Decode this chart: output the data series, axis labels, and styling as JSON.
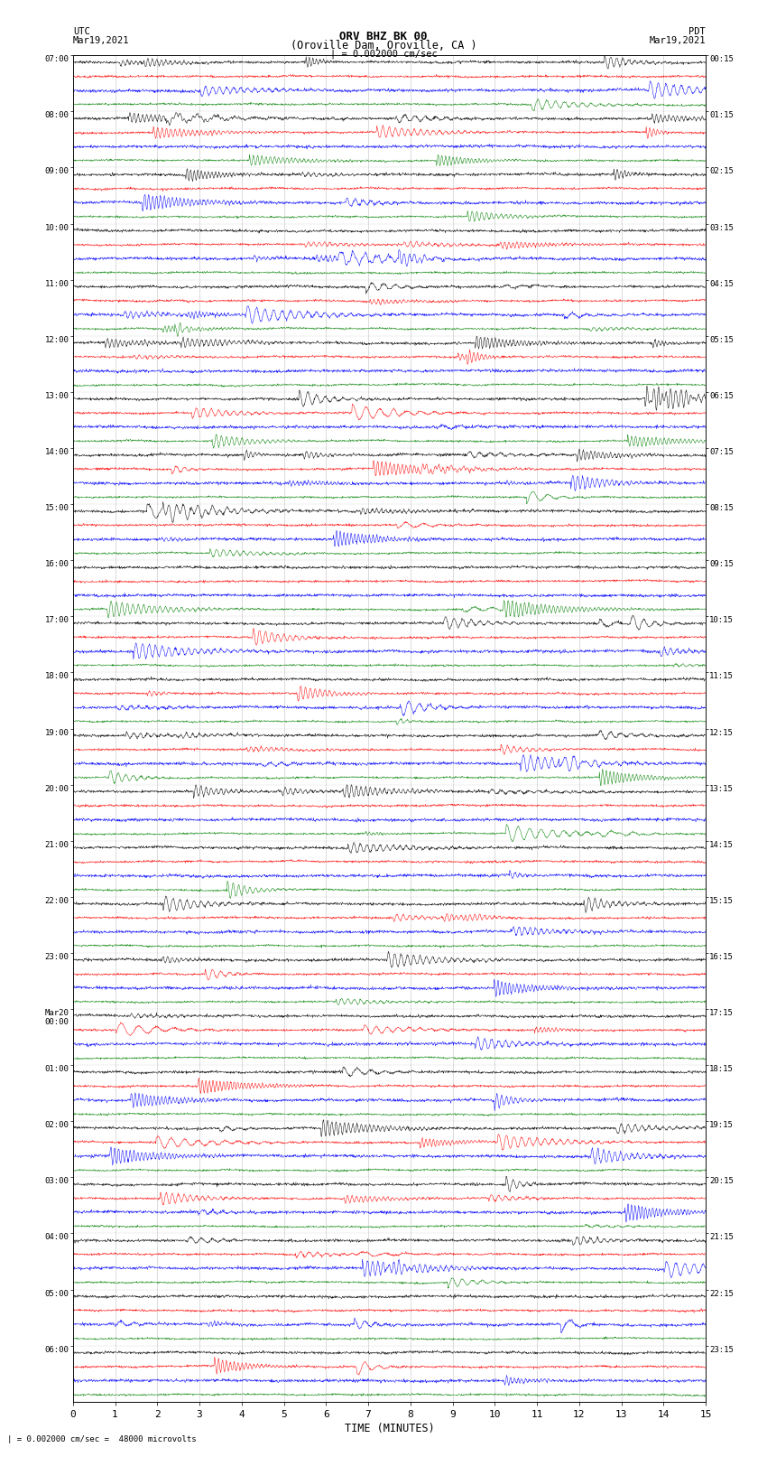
{
  "title_line1": "ORV BHZ BK 00",
  "title_line2": "(Oroville Dam, Oroville, CA )",
  "scale_label": "| = 0.002000 cm/sec",
  "footer_label": "| = 0.002000 cm/sec =  48000 microvolts",
  "left_header_line1": "UTC",
  "left_header_line2": "Mar19,2021",
  "right_header_line1": "PDT",
  "right_header_line2": "Mar19,2021",
  "xlabel": "TIME (MINUTES)",
  "left_times": [
    "07:00",
    "08:00",
    "09:00",
    "10:00",
    "11:00",
    "12:00",
    "13:00",
    "14:00",
    "15:00",
    "16:00",
    "17:00",
    "18:00",
    "19:00",
    "20:00",
    "21:00",
    "22:00",
    "23:00",
    "Mar20\n00:00",
    "01:00",
    "02:00",
    "03:00",
    "04:00",
    "05:00",
    "06:00"
  ],
  "right_times": [
    "00:15",
    "01:15",
    "02:15",
    "03:15",
    "04:15",
    "05:15",
    "06:15",
    "07:15",
    "08:15",
    "09:15",
    "10:15",
    "11:15",
    "12:15",
    "13:15",
    "14:15",
    "15:15",
    "16:15",
    "17:15",
    "18:15",
    "19:15",
    "20:15",
    "21:15",
    "22:15",
    "23:15"
  ],
  "trace_color_cycle": [
    "black",
    "red",
    "blue",
    "green"
  ],
  "n_groups": 24,
  "traces_per_group": 4,
  "bg_color": "white",
  "xmin": 0,
  "xmax": 15,
  "xticks": [
    0,
    1,
    2,
    3,
    4,
    5,
    6,
    7,
    8,
    9,
    10,
    11,
    12,
    13,
    14,
    15
  ],
  "n_pts": 1800,
  "row_amp": 0.38,
  "base_noise": 0.04,
  "vgrid_color": "#aaaaaa",
  "vgrid_alpha": 0.7,
  "vgrid_lw": 0.4
}
